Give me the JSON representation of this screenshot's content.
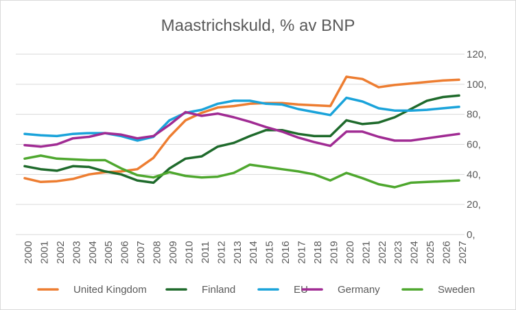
{
  "chart_data": {
    "type": "line",
    "title": "Maastrichskuld, % av BNP",
    "xlabel": "",
    "ylabel": "",
    "x": [
      "2000",
      "2001",
      "2002",
      "2003",
      "2004",
      "2005",
      "2006",
      "2007",
      "2008",
      "2009",
      "2010",
      "2011",
      "2012",
      "2013",
      "2014",
      "2015",
      "2016",
      "2017",
      "2018",
      "2019",
      "2020",
      "2021",
      "2022",
      "2023",
      "2024",
      "2025",
      "2026",
      "2027"
    ],
    "ylim": [
      0,
      120
    ],
    "yticks": [
      0,
      20,
      40,
      60,
      80,
      100,
      120
    ],
    "ytick_labels": [
      "0,",
      "20,",
      "40,",
      "60,",
      "80,",
      "100,",
      "120,"
    ],
    "grid": true,
    "legend_position": "bottom",
    "series": [
      {
        "name": "United Kingdom",
        "color": "#ED7D31",
        "values": [
          37.5,
          35,
          35.5,
          37,
          40,
          41.5,
          42,
          43.5,
          51,
          65,
          76,
          81,
          84.5,
          85.5,
          87,
          87.5,
          87.5,
          86.5,
          86,
          85.5,
          105,
          103.5,
          98,
          99.5,
          100.5,
          101.5,
          102.5,
          103
        ]
      },
      {
        "name": "Finland",
        "color": "#1E6A2B",
        "values": [
          45.5,
          43.5,
          42.5,
          45.5,
          45,
          42,
          40,
          36,
          34.5,
          44,
          50.5,
          52,
          58.5,
          61,
          65.5,
          69.5,
          69.5,
          67,
          65.5,
          65.5,
          76,
          73.5,
          74.5,
          78,
          83.5,
          89,
          91.5,
          92.5
        ]
      },
      {
        "name": "EU",
        "color": "#1AA3DA",
        "values": [
          67,
          66,
          65.5,
          67,
          67.5,
          67.5,
          65.5,
          62.5,
          65,
          76,
          81,
          83,
          87,
          89,
          89,
          87,
          86.5,
          83.5,
          81.5,
          79.5,
          91,
          88.5,
          84,
          82.5,
          82.5,
          83,
          84,
          85
        ]
      },
      {
        "name": "Germany",
        "color": "#A02B93",
        "values": [
          59.5,
          58.5,
          60,
          64,
          65,
          67.5,
          66.5,
          64,
          65.5,
          73,
          81.5,
          79,
          80.5,
          78,
          75,
          71.5,
          68.5,
          64.5,
          61.5,
          59,
          68.5,
          68.5,
          65,
          62.5,
          62.5,
          64,
          65.5,
          67
        ]
      },
      {
        "name": "Sweden",
        "color": "#4EA72E",
        "values": [
          50.5,
          52.5,
          50.5,
          50,
          49.5,
          49.5,
          44,
          39.5,
          38,
          41.5,
          39,
          38,
          38.5,
          41,
          46.5,
          45,
          43.5,
          42,
          40,
          36,
          41,
          37.5,
          33.5,
          31.5,
          34.5,
          35,
          35.5,
          36
        ]
      }
    ]
  }
}
